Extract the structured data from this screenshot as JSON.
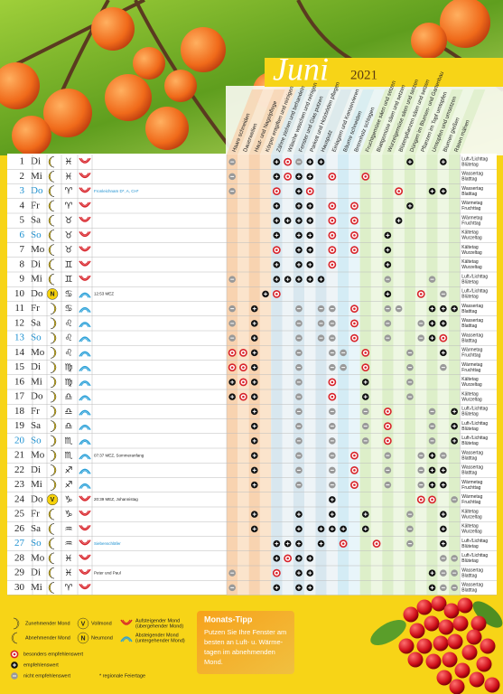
{
  "title": "Juni",
  "year": "2021",
  "columns": [
    {
      "label": "Haare schneiden",
      "color": "#f8d3b0"
    },
    {
      "label": "Dauerwellen",
      "color": "#fbe4cc"
    },
    {
      "label": "Haut- und Nagelpflege",
      "color": "#f8d3b0"
    },
    {
      "label": "Körper entgiften und reinigen",
      "color": "#fbe4cc"
    },
    {
      "label": "Zähne ziehen und behandeln",
      "color": "#d8e7ef"
    },
    {
      "label": "Wäsche waschen und reinigen",
      "color": "#eef4f7"
    },
    {
      "label": "Fenster und Glas putzen",
      "color": "#d8e7ef"
    },
    {
      "label": "Parkett und Holzböden pflegen",
      "color": "#eef4f7"
    },
    {
      "label": "Hausputz",
      "color": "#d8e7ef"
    },
    {
      "label": "Einlagern und Konservieren",
      "color": "#eef4f7"
    },
    {
      "label": "Bäume schneiden",
      "color": "#d4ecf5"
    },
    {
      "label": "Brennholz schlagen",
      "color": "#e8f5fa"
    },
    {
      "label": "Fruchtgemüse säen und setzen",
      "color": "#ddefc9"
    },
    {
      "label": "Blattgemüse säen und setzen",
      "color": "#eef7e3"
    },
    {
      "label": "Wurzelgemüse säen und setzen",
      "color": "#ddefc9"
    },
    {
      "label": "Blütenpflanzen säen und setzen",
      "color": "#eef7e3"
    },
    {
      "label": "Düngen im Blumen- und Gartenbau",
      "color": "#ddefc9"
    },
    {
      "label": "Pflanzen im Topf umtopfen",
      "color": "#eef7e3"
    },
    {
      "label": "Umtopfen und umsetzen",
      "color": "#ddefc9"
    },
    {
      "label": "Blumen gießen",
      "color": "#eef7e3"
    },
    {
      "label": "Rasen mähen",
      "color": "#ddefc9"
    }
  ],
  "rows": [
    {
      "day": 1,
      "weekday": "Di",
      "moon": "waning",
      "sign": "♓",
      "arc": "up",
      "element": [
        "Luft-/Lichttag",
        "Blütetag"
      ],
      "marks": "-...+o-++.......+..+."
    },
    {
      "day": 2,
      "weekday": "Mi",
      "moon": "waning",
      "sign": "♓",
      "arc": "up",
      "element": [
        "Wassertag",
        "Blatttag"
      ],
      "marks": "-...+o++.o..o........"
    },
    {
      "day": 3,
      "weekday": "Do",
      "highlight": true,
      "moon": "waning",
      "sign": "♈",
      "arc": "up",
      "note": "Fronleichnam D*, A, CH*",
      "element": [
        "Wassertag",
        "Blatttag"
      ],
      "marks": "-...o.+o.......o..++."
    },
    {
      "day": 4,
      "weekday": "Fr",
      "moon": "waning",
      "sign": "♈",
      "arc": "up",
      "element": [
        "Wärmetag",
        "Fruchttag"
      ],
      "marks": "....+.++.o.o....+...."
    },
    {
      "day": 5,
      "weekday": "Sa",
      "moon": "waning",
      "sign": "♉",
      "arc": "up",
      "element": [
        "Wärmetag",
        "Fruchttag"
      ],
      "marks": "....++++.o.o...+....."
    },
    {
      "day": 6,
      "weekday": "So",
      "highlight": true,
      "moon": "waning",
      "sign": "♉",
      "arc": "up",
      "element": [
        "Kältetag",
        "Wurzeltag"
      ],
      "marks": "....+.++.o.o..+......"
    },
    {
      "day": 7,
      "weekday": "Mo",
      "moon": "waning",
      "sign": "♉",
      "arc": "up",
      "element": [
        "Kältetag",
        "Wurzeltag"
      ],
      "marks": "....o.++.o.o..+......"
    },
    {
      "day": 8,
      "weekday": "Di",
      "moon": "waning",
      "sign": "♊",
      "arc": "up",
      "element": [
        "Kältetag",
        "Wurzeltag"
      ],
      "marks": "....+.++.o....+......"
    },
    {
      "day": 9,
      "weekday": "Mi",
      "moon": "waning",
      "sign": "♊",
      "arc": "up",
      "element": [
        "Luft-/Lichttag",
        "Blütetag"
      ],
      "marks": "-...+++++.....-...-.."
    },
    {
      "day": 10,
      "weekday": "Do",
      "moon": "new",
      "moon_label": "N",
      "sign": "♋",
      "arc": "down",
      "note": "12:53 MEZ",
      "element": [
        "Luft-/Lichttag",
        "Blütetag"
      ],
      "marks": "...+o.........+..o.-."
    },
    {
      "day": 11,
      "weekday": "Fr",
      "moon": "waxing",
      "sign": "♋",
      "arc": "down",
      "element": [
        "Wassertag",
        "Blatttag"
      ],
      "marks": "-.+...-.--.o..--..+++"
    },
    {
      "day": 12,
      "weekday": "Sa",
      "moon": "waxing",
      "sign": "♌",
      "arc": "down",
      "element": [
        "Wassertag",
        "Blatttag"
      ],
      "marks": "-.+...-.--.o..-..-++."
    },
    {
      "day": 13,
      "weekday": "So",
      "highlight": true,
      "moon": "waxing",
      "sign": "♌",
      "arc": "down",
      "element": [
        "Wassertag",
        "Blatttag"
      ],
      "marks": "-.+...-.--.o..-..-+o."
    },
    {
      "day": 14,
      "weekday": "Mo",
      "moon": "waxing",
      "sign": "♌",
      "arc": "down",
      "element": [
        "Wärmetag",
        "Fruchttag"
      ],
      "marks": "oo+...-..--.o...-..+."
    },
    {
      "day": 15,
      "weekday": "Di",
      "moon": "waxing",
      "sign": "♍",
      "arc": "down",
      "element": [
        "Wärmetag",
        "Fruchttag"
      ],
      "marks": "oo+...-..--.o...-..-."
    },
    {
      "day": 16,
      "weekday": "Mi",
      "moon": "waxing",
      "sign": "♍",
      "arc": "down",
      "element": [
        "Kältetag",
        "Wurzeltag"
      ],
      "marks": "+o+...-..o..+...-...."
    },
    {
      "day": 17,
      "weekday": "Do",
      "moon": "waxing",
      "sign": "♎",
      "arc": "down",
      "element": [
        "Kältetag",
        "Wurzeltag"
      ],
      "marks": "+o+...-..o..+...-...."
    },
    {
      "day": 18,
      "weekday": "Fr",
      "moon": "waxing",
      "sign": "♎",
      "arc": "down",
      "element": [
        "Luft-/Lichttag",
        "Blütetag"
      ],
      "marks": "..+...-..-..-.o...-.+"
    },
    {
      "day": 19,
      "weekday": "Sa",
      "moon": "waxing",
      "sign": "♎",
      "arc": "down",
      "element": [
        "Luft-/Lichttag",
        "Blütetag"
      ],
      "marks": "..+...-..-..-.o...-.+"
    },
    {
      "day": 20,
      "weekday": "So",
      "highlight": true,
      "moon": "waxing",
      "sign": "♏",
      "arc": "down",
      "element": [
        "Luft-/Lichttag",
        "Blütetag"
      ],
      "marks": "..+...-..-..-.o...-.+"
    },
    {
      "day": 21,
      "weekday": "Mo",
      "moon": "waxing",
      "sign": "♏",
      "arc": "down",
      "note": "07:37 MEZ, Sommeranfang",
      "element": [
        "Wassertag",
        "Blatttag"
      ],
      "marks": "..+...-..-.o..-..-+-."
    },
    {
      "day": 22,
      "weekday": "Di",
      "moon": "waxing",
      "sign": "♐",
      "arc": "down",
      "element": [
        "Wassertag",
        "Blatttag"
      ],
      "marks": "..+...-..-.o..-..-++."
    },
    {
      "day": 23,
      "weekday": "Mi",
      "moon": "waxing",
      "sign": "♐",
      "arc": "down",
      "element": [
        "Wärmetag",
        "Fruchttag"
      ],
      "marks": "..+...-..-.o..-..-++."
    },
    {
      "day": 24,
      "weekday": "Do",
      "moon": "full",
      "moon_label": "V",
      "sign": "♑",
      "arc": "up",
      "note": "20:39 MEZ, Johannistag",
      "element": [
        "Wärmetag",
        "Fruchttag"
      ],
      "marks": ".........+.......oo.-"
    },
    {
      "day": 25,
      "weekday": "Fr",
      "moon": "waning",
      "sign": "♑",
      "arc": "up",
      "element": [
        "Kältetag",
        "Wurzeltag"
      ],
      "marks": "..+...+..+..+...-..+."
    },
    {
      "day": 26,
      "weekday": "Sa",
      "moon": "waning",
      "sign": "♒",
      "arc": "up",
      "element": [
        "Kältetag",
        "Wurzeltag"
      ],
      "marks": "..+...+.+++.+...-..+."
    },
    {
      "day": 27,
      "weekday": "So",
      "highlight": true,
      "moon": "waning",
      "sign": "♒",
      "arc": "up",
      "note": "Siebenschläfer",
      "element": [
        "Luft-/Lichttag",
        "Blütetag"
      ],
      "marks": "....+++.+.o..o..-..+."
    },
    {
      "day": 28,
      "weekday": "Mo",
      "moon": "waning",
      "sign": "♓",
      "arc": "up",
      "element": [
        "Luft-/Lichttag",
        "Blütetag"
      ],
      "marks": "....+o++...........--"
    },
    {
      "day": 29,
      "weekday": "Di",
      "moon": "waning",
      "sign": "♓",
      "arc": "up",
      "note": "Peter und Paul",
      "element": [
        "Wassertag",
        "Blatttag"
      ],
      "marks": "-...o.++..........+--"
    },
    {
      "day": 30,
      "weekday": "Mi",
      "moon": "waning",
      "sign": "♈",
      "arc": "up",
      "element": [
        "Wassertag",
        "Blatttag"
      ],
      "marks": "-...+.++..........+--"
    }
  ],
  "legend": {
    "waxing": "Zunehmender Mond",
    "full": "Vollmond",
    "full_letter": "V",
    "ascending": [
      "Aufsteigender Mond",
      "(übergehender Mond)"
    ],
    "waning": "Abnehmender Mond",
    "new": "Neumond",
    "new_letter": "N",
    "descending": [
      "Absteigender Mond",
      "(untergehender Mond)"
    ],
    "best": "besonders empfehlenswert",
    "good": "empfehlenswert",
    "bad": "nicht empfehlenswert",
    "holiday": "* regionale Feiertage"
  },
  "tip": {
    "title": "Monats-Tipp",
    "lines": [
      "Putzen Sie Ihre Fenster am",
      "besten an Luft- u. Wärme-",
      "tagen im abnehmenden",
      "Mond."
    ]
  }
}
